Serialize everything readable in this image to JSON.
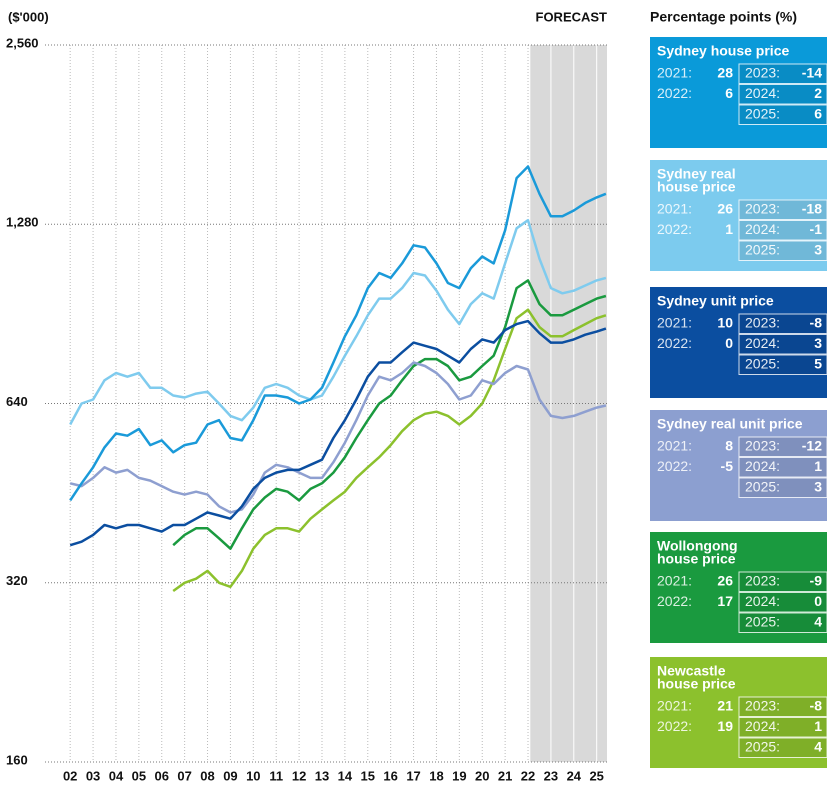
{
  "chart_data": {
    "type": "line",
    "y_unit_label": "($'000)",
    "forecast_label": "FORECAST",
    "forecast_start": 2022.1,
    "log_scale": true,
    "grid": true,
    "x": [
      2002,
      2002.5,
      2003,
      2003.5,
      2004,
      2004.5,
      2005,
      2005.5,
      2006,
      2006.5,
      2007,
      2007.5,
      2008,
      2008.5,
      2009,
      2009.5,
      2010,
      2010.5,
      2011,
      2011.5,
      2012,
      2012.5,
      2013,
      2013.5,
      2014,
      2014.5,
      2015,
      2015.5,
      2016,
      2016.5,
      2017,
      2017.5,
      2018,
      2018.5,
      2019,
      2019.5,
      2020,
      2020.5,
      2021,
      2021.5,
      2022,
      2022.5,
      2023,
      2023.5,
      2024,
      2024.5,
      2025,
      2025.4
    ],
    "xlim": [
      2000.9,
      2025.45
    ],
    "xticks": [
      {
        "value": 2002,
        "label": "02"
      },
      {
        "value": 2003,
        "label": "03"
      },
      {
        "value": 2004,
        "label": "04"
      },
      {
        "value": 2005,
        "label": "05"
      },
      {
        "value": 2006,
        "label": "06"
      },
      {
        "value": 2007,
        "label": "07"
      },
      {
        "value": 2008,
        "label": "08"
      },
      {
        "value": 2009,
        "label": "09"
      },
      {
        "value": 2010,
        "label": "10"
      },
      {
        "value": 2011,
        "label": "11"
      },
      {
        "value": 2012,
        "label": "12"
      },
      {
        "value": 2013,
        "label": "13"
      },
      {
        "value": 2014,
        "label": "14"
      },
      {
        "value": 2015,
        "label": "15"
      },
      {
        "value": 2016,
        "label": "16"
      },
      {
        "value": 2017,
        "label": "17"
      },
      {
        "value": 2018,
        "label": "18"
      },
      {
        "value": 2019,
        "label": "19"
      },
      {
        "value": 2020,
        "label": "20"
      },
      {
        "value": 2021,
        "label": "21"
      },
      {
        "value": 2022,
        "label": "22"
      },
      {
        "value": 2023,
        "label": "23"
      },
      {
        "value": 2024,
        "label": "24"
      },
      {
        "value": 2025,
        "label": "25"
      }
    ],
    "ylim": [
      160,
      2560
    ],
    "yticks": [
      160,
      320,
      640,
      {
        "value": 1280,
        "label": "1,280"
      },
      {
        "value": 2560,
        "label": "2,560"
      }
    ],
    "series": [
      {
        "color": "#8cc12d",
        "values": [
          null,
          null,
          null,
          null,
          null,
          null,
          null,
          null,
          null,
          310,
          320,
          325,
          335,
          320,
          315,
          335,
          365,
          385,
          395,
          395,
          390,
          410,
          425,
          440,
          455,
          480,
          500,
          520,
          545,
          575,
          600,
          615,
          620,
          610,
          590,
          610,
          640,
          700,
          790,
          890,
          920,
          860,
          830,
          830,
          850,
          870,
          890,
          900
        ]
      },
      {
        "color": "#1a9a3f",
        "values": [
          null,
          null,
          null,
          null,
          null,
          null,
          null,
          null,
          null,
          370,
          385,
          395,
          395,
          380,
          365,
          395,
          425,
          445,
          460,
          455,
          440,
          460,
          470,
          490,
          520,
          560,
          600,
          640,
          660,
          700,
          740,
          760,
          760,
          740,
          700,
          710,
          740,
          770,
          860,
          1000,
          1030,
          940,
          900,
          900,
          920,
          940,
          960,
          970
        ]
      },
      {
        "color": "#8e9fd0",
        "values": [
          470,
          465,
          480,
          500,
          490,
          495,
          480,
          475,
          465,
          455,
          450,
          455,
          450,
          430,
          420,
          425,
          450,
          490,
          505,
          500,
          490,
          480,
          480,
          510,
          550,
          600,
          660,
          710,
          700,
          720,
          750,
          740,
          720,
          690,
          650,
          660,
          700,
          690,
          720,
          740,
          730,
          650,
          610,
          605,
          610,
          620,
          630,
          635
        ]
      },
      {
        "color": "#0b4ea0",
        "values": [
          370,
          375,
          385,
          400,
          395,
          400,
          400,
          395,
          390,
          400,
          400,
          410,
          420,
          415,
          410,
          430,
          460,
          480,
          490,
          495,
          495,
          505,
          515,
          560,
          600,
          650,
          710,
          750,
          750,
          780,
          810,
          800,
          790,
          770,
          750,
          790,
          820,
          810,
          850,
          870,
          880,
          840,
          810,
          810,
          820,
          835,
          845,
          855
        ]
      },
      {
        "color": "#7fcbee",
        "values": [
          590,
          640,
          650,
          700,
          720,
          710,
          720,
          680,
          680,
          660,
          655,
          665,
          670,
          640,
          610,
          600,
          630,
          680,
          690,
          680,
          660,
          650,
          660,
          710,
          770,
          830,
          900,
          960,
          960,
          1000,
          1060,
          1050,
          990,
          920,
          870,
          940,
          980,
          960,
          1100,
          1260,
          1300,
          1120,
          1000,
          980,
          990,
          1010,
          1030,
          1040
        ]
      },
      {
        "color": "#1a9ad9",
        "values": [
          440,
          470,
          500,
          540,
          570,
          565,
          580,
          545,
          555,
          530,
          545,
          550,
          590,
          600,
          560,
          555,
          600,
          660,
          660,
          655,
          640,
          650,
          680,
          750,
          830,
          900,
          1000,
          1060,
          1040,
          1100,
          1180,
          1170,
          1100,
          1020,
          1000,
          1080,
          1130,
          1100,
          1250,
          1530,
          1600,
          1440,
          1320,
          1320,
          1350,
          1390,
          1420,
          1440
        ]
      }
    ]
  },
  "panel": {
    "title": "Percentage points (%)",
    "cards": [
      {
        "title": [
          "Sydney house price"
        ],
        "color": "#0a9ad9",
        "left": [
          {
            "label": "2021:",
            "value": 28
          },
          {
            "label": "2022:",
            "value": 6
          }
        ],
        "right": [
          {
            "label": "2023:",
            "value": -14
          },
          {
            "label": "2024:",
            "value": 2
          },
          {
            "label": "2025:",
            "value": 6
          }
        ]
      },
      {
        "title": [
          "Sydney real",
          "house price"
        ],
        "color": "#7ccbee",
        "left": [
          {
            "label": "2021:",
            "value": 26
          },
          {
            "label": "2022:",
            "value": 1
          }
        ],
        "right": [
          {
            "label": "2023:",
            "value": -18
          },
          {
            "label": "2024:",
            "value": -1
          },
          {
            "label": "2025:",
            "value": 3
          }
        ]
      },
      {
        "title": [
          "Sydney unit price"
        ],
        "color": "#0b4ea0",
        "left": [
          {
            "label": "2021:",
            "value": 10
          },
          {
            "label": "2022:",
            "value": 0
          }
        ],
        "right": [
          {
            "label": "2023:",
            "value": -8
          },
          {
            "label": "2024:",
            "value": 3
          },
          {
            "label": "2025:",
            "value": 5
          }
        ]
      },
      {
        "title": [
          "Sydney real unit price"
        ],
        "color": "#8c9fd0",
        "left": [
          {
            "label": "2021:",
            "value": 8
          },
          {
            "label": "2022:",
            "value": -5
          }
        ],
        "right": [
          {
            "label": "2023:",
            "value": -12
          },
          {
            "label": "2024:",
            "value": 1
          },
          {
            "label": "2025:",
            "value": 3
          }
        ]
      },
      {
        "title": [
          "Wollongong",
          "house price"
        ],
        "color": "#1a9a3f",
        "left": [
          {
            "label": "2021:",
            "value": 26
          },
          {
            "label": "2022:",
            "value": 17
          }
        ],
        "right": [
          {
            "label": "2023:",
            "value": -9
          },
          {
            "label": "2024:",
            "value": 0
          },
          {
            "label": "2025:",
            "value": 4
          }
        ]
      },
      {
        "title": [
          "Newcastle",
          "house price"
        ],
        "color": "#8cc12d",
        "left": [
          {
            "label": "2021:",
            "value": 21
          },
          {
            "label": "2022:",
            "value": 19
          }
        ],
        "right": [
          {
            "label": "2023:",
            "value": -8
          },
          {
            "label": "2024:",
            "value": 1
          },
          {
            "label": "2025:",
            "value": 4
          }
        ]
      }
    ]
  }
}
